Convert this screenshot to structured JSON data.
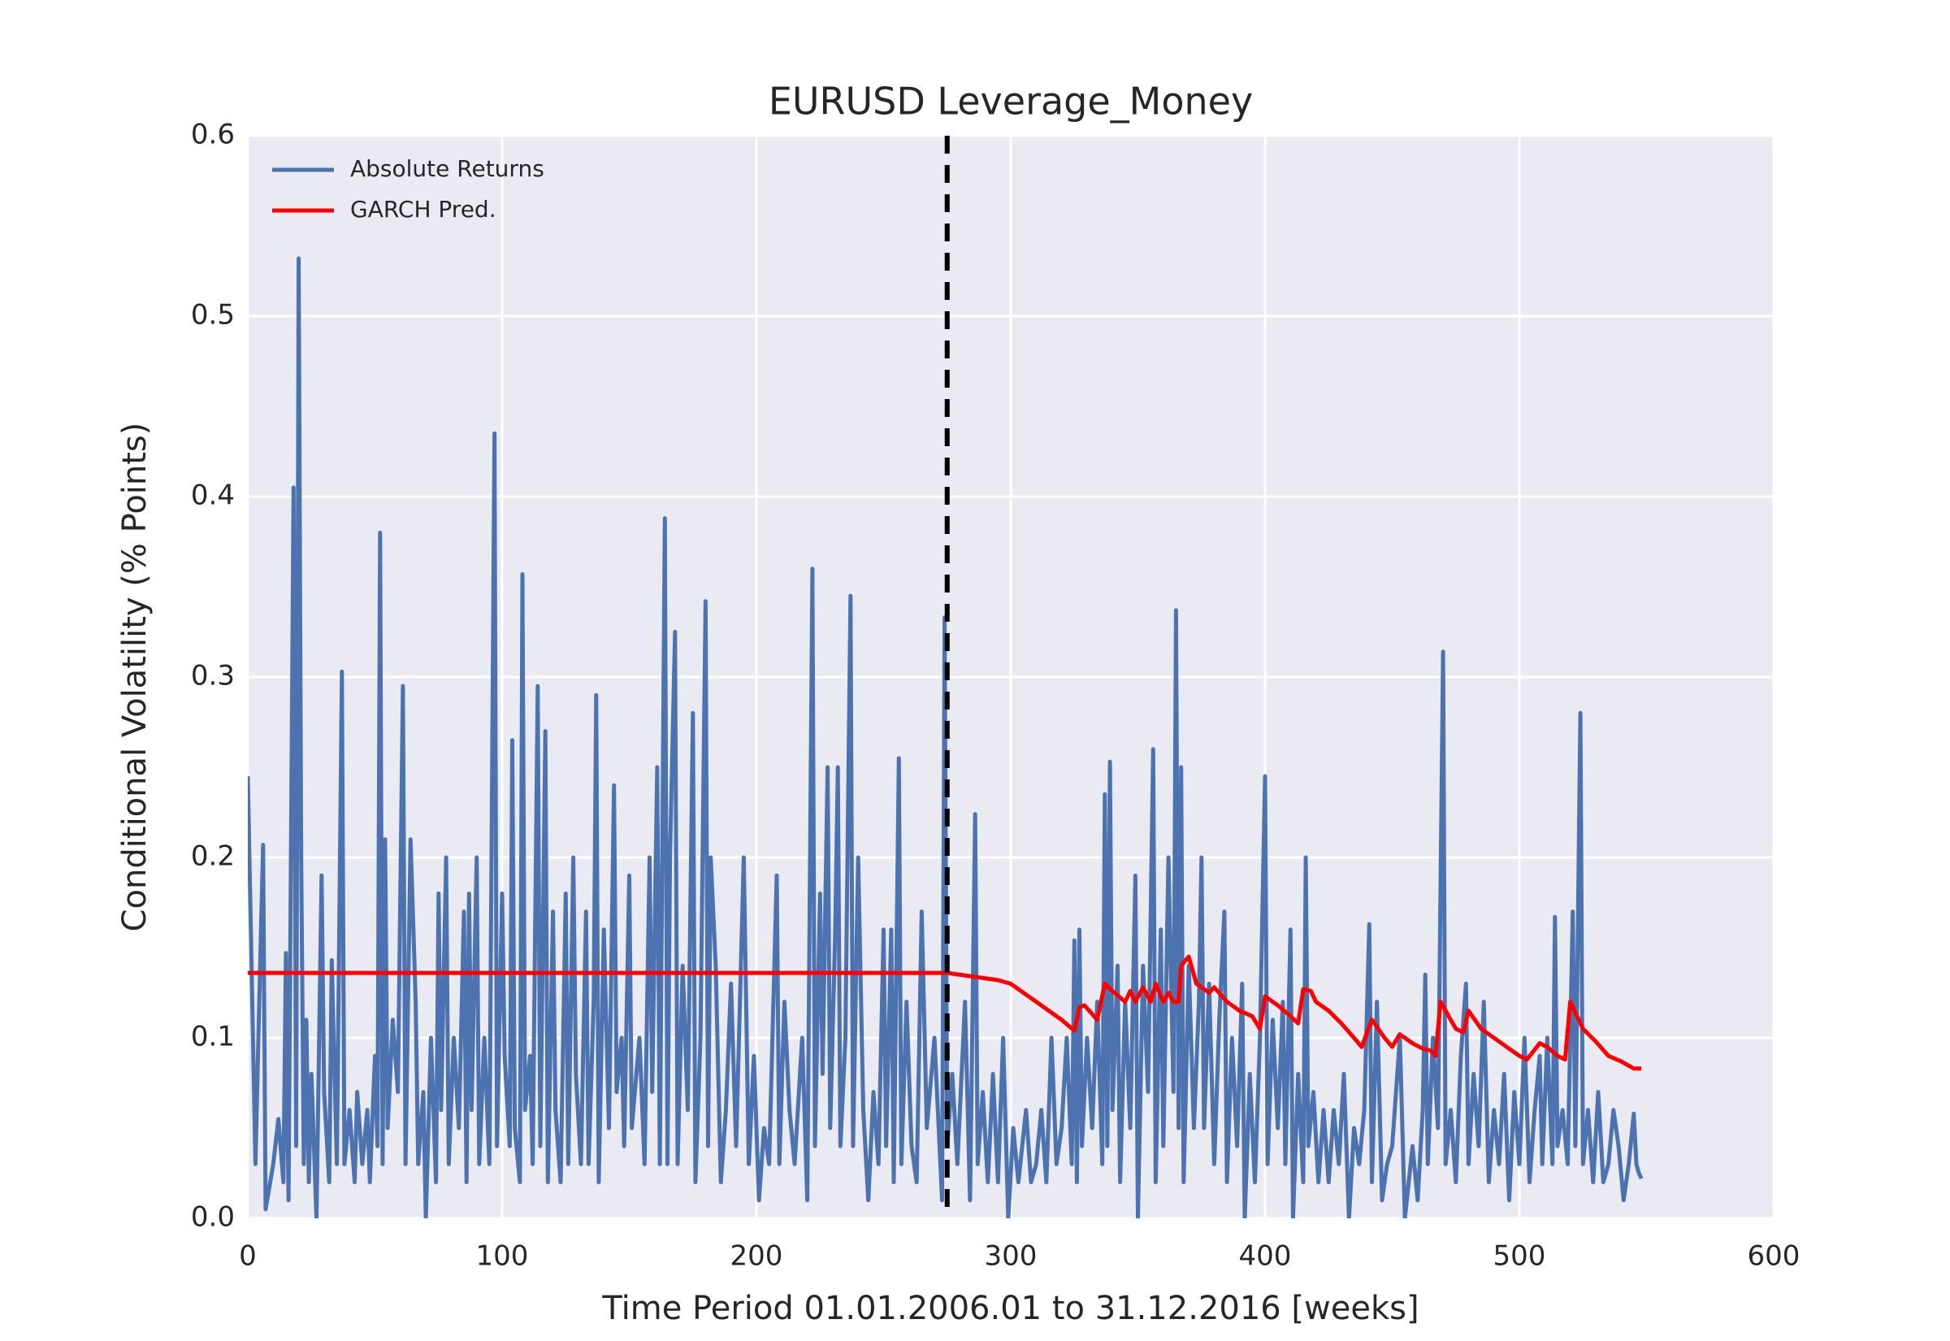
{
  "chart_data": {
    "type": "line",
    "title": "EURUSD Leverage_Money",
    "xlabel": "Time Period 01.01.2006.01 to 31.12.2016 [weeks]",
    "ylabel": "Conditional Volatility (% Points)",
    "xlim": [
      0,
      600
    ],
    "xticks": [
      0,
      100,
      200,
      300,
      400,
      500,
      600
    ],
    "ylim": [
      0,
      0.6
    ],
    "yticks": [
      {
        "value": 0,
        "label": "0.0"
      },
      0.1,
      0.2,
      0.3,
      0.4,
      0.5,
      0.6
    ],
    "grid": true,
    "legend": "upper left",
    "vline": 275,
    "series": [
      {
        "name": "Absolute Returns",
        "color": "#4c72b0",
        "x": [
          0,
          3,
          4,
          6,
          7,
          10,
          12,
          14,
          15,
          16,
          18,
          19,
          20,
          21,
          22,
          23,
          24,
          25,
          27,
          29,
          30,
          32,
          33,
          35,
          37,
          38,
          40,
          42,
          43,
          45,
          47,
          48,
          50,
          51,
          52,
          53,
          54,
          55,
          57,
          59,
          61,
          62,
          64,
          66,
          67,
          69,
          70,
          72,
          74,
          75,
          76,
          78,
          79,
          81,
          83,
          85,
          86,
          87,
          88,
          90,
          91,
          93,
          95,
          97,
          98,
          100,
          101,
          103,
          104,
          105,
          107,
          108,
          109,
          111,
          112,
          114,
          115,
          117,
          118,
          120,
          121,
          123,
          125,
          126,
          128,
          129,
          131,
          133,
          134,
          136,
          137,
          138,
          140,
          142,
          144,
          145,
          147,
          148,
          150,
          151,
          154,
          156,
          158,
          159,
          161,
          162,
          164,
          165,
          166,
          168,
          169,
          171,
          173,
          175,
          176,
          178,
          180,
          181,
          182,
          184,
          186,
          188,
          190,
          192,
          195,
          197,
          199,
          201,
          203,
          205,
          208,
          209,
          211,
          213,
          215,
          218,
          220,
          222,
          223,
          225,
          226,
          228,
          229,
          231,
          232,
          233,
          235,
          237,
          238,
          240,
          242,
          244,
          246,
          248,
          250,
          251,
          253,
          254,
          256,
          257,
          259,
          261,
          263,
          265,
          267,
          270,
          273,
          274,
          275,
          277,
          279,
          282,
          284,
          286,
          287,
          289,
          291,
          293,
          295,
          297,
          299,
          301,
          303,
          306,
          308,
          310,
          312,
          314,
          316,
          318,
          320,
          322,
          324,
          325,
          326,
          327,
          328,
          330,
          332,
          334,
          336,
          337,
          338,
          339,
          340,
          342,
          343,
          345,
          347,
          349,
          350,
          352,
          354,
          356,
          357,
          359,
          360,
          362,
          364,
          365,
          366,
          367,
          368,
          370,
          372,
          374,
          375,
          376,
          378,
          380,
          382,
          384,
          385,
          387,
          389,
          391,
          392,
          394,
          396,
          398,
          400,
          401,
          403,
          405,
          407,
          408,
          410,
          411,
          413,
          415,
          416,
          417,
          419,
          421,
          423,
          425,
          427,
          429,
          431,
          433,
          435,
          437,
          439,
          441,
          442,
          444,
          446,
          448,
          450,
          453,
          455,
          458,
          460,
          462,
          463,
          464,
          466,
          468,
          470,
          471,
          473,
          475,
          477,
          479,
          480,
          482,
          484,
          486,
          488,
          490,
          492,
          494,
          496,
          498,
          500,
          502,
          504,
          506,
          508,
          509,
          511,
          513,
          514,
          515,
          517,
          519,
          521,
          522,
          524,
          525,
          527,
          529,
          531,
          533,
          535,
          537,
          539,
          541,
          543,
          545,
          546,
          547,
          548
        ],
        "values": [
          0.245,
          0.03,
          0.09,
          0.207,
          0.005,
          0.03,
          0.055,
          0.02,
          0.147,
          0.01,
          0.405,
          0.04,
          0.532,
          0.2,
          0.03,
          0.11,
          0.02,
          0.08,
          0.0,
          0.19,
          0.07,
          0.02,
          0.143,
          0.03,
          0.303,
          0.03,
          0.06,
          0.02,
          0.07,
          0.03,
          0.06,
          0.02,
          0.09,
          0.04,
          0.38,
          0.03,
          0.21,
          0.05,
          0.11,
          0.07,
          0.295,
          0.03,
          0.21,
          0.12,
          0.03,
          0.07,
          0.0,
          0.1,
          0.02,
          0.18,
          0.06,
          0.2,
          0.03,
          0.1,
          0.05,
          0.17,
          0.02,
          0.18,
          0.06,
          0.2,
          0.03,
          0.1,
          0.03,
          0.435,
          0.04,
          0.18,
          0.09,
          0.04,
          0.265,
          0.05,
          0.02,
          0.357,
          0.06,
          0.09,
          0.03,
          0.295,
          0.04,
          0.27,
          0.02,
          0.17,
          0.06,
          0.02,
          0.18,
          0.03,
          0.2,
          0.08,
          0.03,
          0.17,
          0.03,
          0.12,
          0.29,
          0.02,
          0.16,
          0.05,
          0.24,
          0.07,
          0.1,
          0.04,
          0.19,
          0.05,
          0.1,
          0.03,
          0.2,
          0.07,
          0.25,
          0.03,
          0.388,
          0.03,
          0.2,
          0.325,
          0.03,
          0.14,
          0.06,
          0.28,
          0.02,
          0.1,
          0.342,
          0.04,
          0.2,
          0.14,
          0.02,
          0.06,
          0.13,
          0.04,
          0.2,
          0.03,
          0.09,
          0.01,
          0.05,
          0.03,
          0.19,
          0.03,
          0.12,
          0.06,
          0.03,
          0.1,
          0.01,
          0.36,
          0.04,
          0.18,
          0.08,
          0.25,
          0.05,
          0.16,
          0.25,
          0.04,
          0.1,
          0.345,
          0.04,
          0.2,
          0.06,
          0.01,
          0.07,
          0.03,
          0.16,
          0.04,
          0.16,
          0.02,
          0.255,
          0.03,
          0.12,
          0.04,
          0.02,
          0.17,
          0.05,
          0.1,
          0.01,
          0.333,
          0.04,
          0.08,
          0.03,
          0.12,
          0.01,
          0.224,
          0.03,
          0.07,
          0.02,
          0.08,
          0.02,
          0.1,
          0.0,
          0.05,
          0.02,
          0.06,
          0.02,
          0.03,
          0.06,
          0.02,
          0.1,
          0.03,
          0.05,
          0.1,
          0.03,
          0.154,
          0.02,
          0.16,
          0.04,
          0.1,
          0.05,
          0.12,
          0.03,
          0.235,
          0.04,
          0.253,
          0.06,
          0.14,
          0.02,
          0.12,
          0.05,
          0.19,
          0.0,
          0.14,
          0.07,
          0.26,
          0.02,
          0.16,
          0.04,
          0.2,
          0.07,
          0.337,
          0.05,
          0.25,
          0.02,
          0.14,
          0.05,
          0.12,
          0.2,
          0.05,
          0.13,
          0.03,
          0.11,
          0.17,
          0.02,
          0.1,
          0.04,
          0.13,
          0.0,
          0.08,
          0.02,
          0.1,
          0.245,
          0.03,
          0.11,
          0.05,
          0.12,
          0.03,
          0.16,
          0.0,
          0.08,
          0.02,
          0.2,
          0.04,
          0.07,
          0.02,
          0.06,
          0.02,
          0.06,
          0.03,
          0.08,
          0.0,
          0.05,
          0.03,
          0.06,
          0.163,
          0.02,
          0.12,
          0.01,
          0.03,
          0.04,
          0.1,
          0.0,
          0.04,
          0.01,
          0.06,
          0.135,
          0.03,
          0.1,
          0.05,
          0.314,
          0.03,
          0.06,
          0.02,
          0.09,
          0.13,
          0.03,
          0.08,
          0.04,
          0.12,
          0.02,
          0.06,
          0.03,
          0.08,
          0.01,
          0.07,
          0.03,
          0.1,
          0.02,
          0.06,
          0.09,
          0.03,
          0.1,
          0.03,
          0.167,
          0.04,
          0.06,
          0.03,
          0.17,
          0.04,
          0.28,
          0.03,
          0.06,
          0.02,
          0.07,
          0.02,
          0.03,
          0.06,
          0.04,
          0.01,
          0.03,
          0.058,
          0.03,
          0.025,
          0.022
        ]
      },
      {
        "name": "GARCH Pred.",
        "color": "#ff0000",
        "x": [
          0,
          275,
          285,
          295,
          300,
          310,
          320,
          325,
          327,
          329,
          334,
          337,
          340,
          345,
          347,
          349,
          352,
          355,
          357,
          360,
          362,
          364,
          366,
          367,
          370,
          373,
          378,
          380,
          385,
          390,
          395,
          398,
          400,
          405,
          410,
          413,
          415,
          418,
          420,
          425,
          430,
          435,
          438,
          442,
          447,
          450,
          453,
          458,
          462,
          465,
          467,
          469,
          475,
          478,
          480,
          485,
          490,
          495,
          500,
          503,
          508,
          511,
          515,
          518,
          520,
          525,
          530,
          535,
          540,
          545,
          548
        ],
        "values": [
          0.136,
          0.136,
          0.134,
          0.132,
          0.13,
          0.12,
          0.11,
          0.104,
          0.117,
          0.118,
          0.11,
          0.13,
          0.126,
          0.12,
          0.126,
          0.12,
          0.128,
          0.12,
          0.13,
          0.12,
          0.125,
          0.12,
          0.12,
          0.14,
          0.145,
          0.13,
          0.125,
          0.128,
          0.12,
          0.115,
          0.112,
          0.105,
          0.123,
          0.118,
          0.112,
          0.108,
          0.127,
          0.126,
          0.12,
          0.115,
          0.108,
          0.1,
          0.095,
          0.11,
          0.1,
          0.095,
          0.102,
          0.097,
          0.094,
          0.093,
          0.09,
          0.12,
          0.105,
          0.103,
          0.115,
          0.105,
          0.1,
          0.095,
          0.09,
          0.088,
          0.097,
          0.095,
          0.09,
          0.088,
          0.12,
          0.105,
          0.098,
          0.09,
          0.087,
          0.083,
          0.083
        ]
      }
    ]
  }
}
